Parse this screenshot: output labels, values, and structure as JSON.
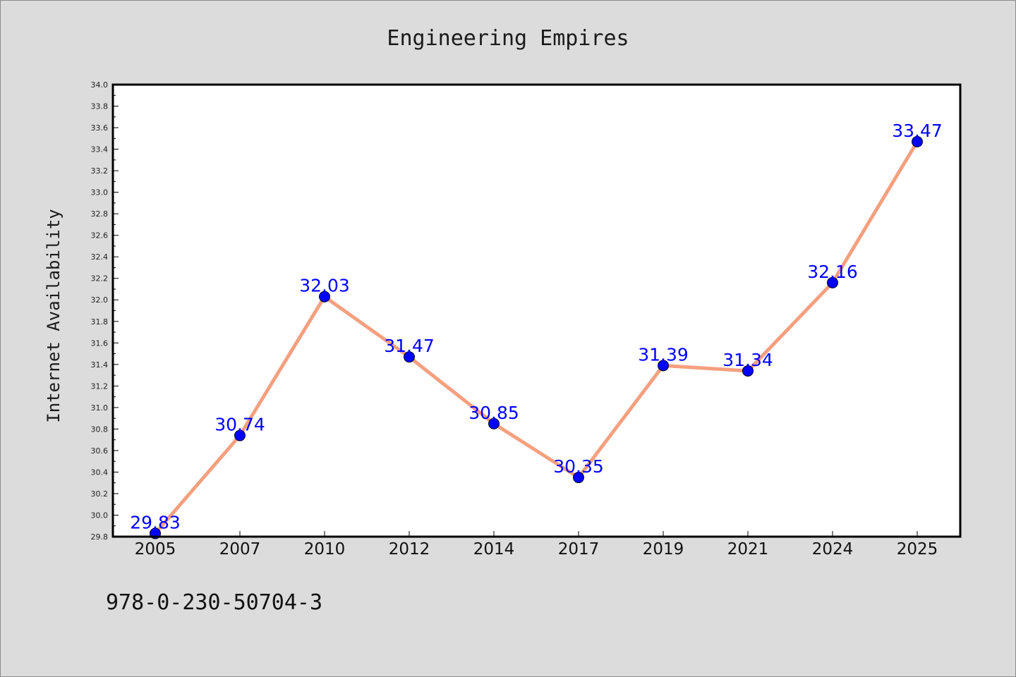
{
  "chart_data": {
    "type": "line",
    "title": "Engineering Empires",
    "xlabel": "",
    "ylabel": "Internet Availability",
    "categories": [
      "2005",
      "2007",
      "2010",
      "2012",
      "2014",
      "2017",
      "2019",
      "2021",
      "2024",
      "2025"
    ],
    "series": [
      {
        "values": [
          29.83,
          30.74,
          32.03,
          31.47,
          30.85,
          30.35,
          31.39,
          31.34,
          32.16,
          33.47
        ],
        "labels": [
          "29.83",
          "30.74",
          "32.03",
          "31.47",
          "30.85",
          "30.35",
          "31.39",
          "31.34",
          "32.16",
          "33.47"
        ],
        "line_color": "#f4a07f",
        "marker_color": "#0000ff"
      }
    ],
    "ylim": [
      29.8,
      34.0
    ],
    "yticks": [
      "29.8",
      "30.0",
      "30.2",
      "30.4",
      "30.6",
      "30.8",
      "31.0",
      "31.2",
      "31.4",
      "31.6",
      "31.8",
      "32.0",
      "32.2",
      "32.4",
      "32.6",
      "32.8",
      "33.0",
      "33.2",
      "33.4",
      "33.6",
      "33.8",
      "34.0"
    ],
    "grid": false,
    "legend": "none",
    "background_color": "#dcdcdc",
    "plot_background_color": "#ffffff"
  },
  "footnote": "978-0-230-50704-3"
}
